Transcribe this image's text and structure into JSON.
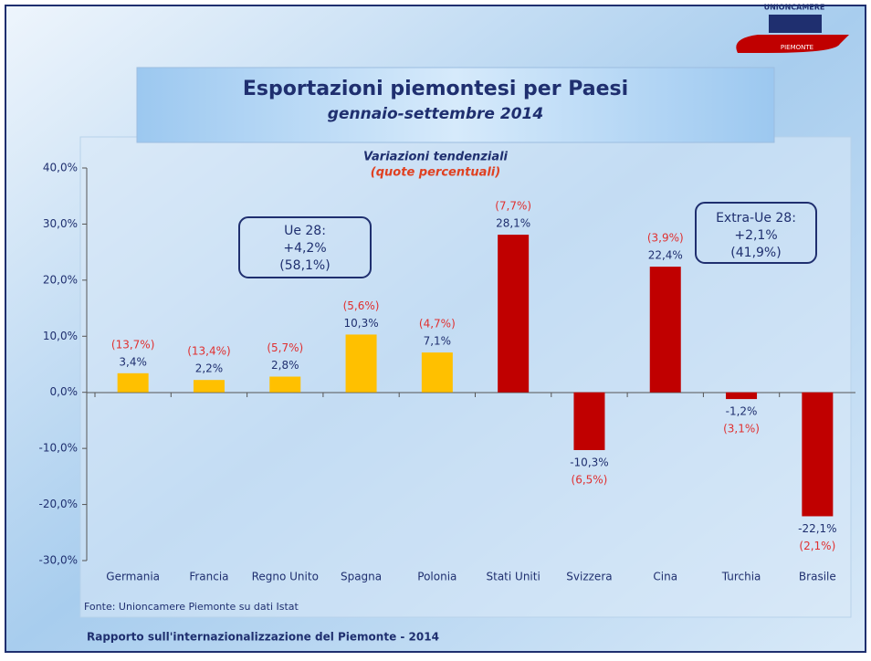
{
  "chart_data": {
    "type": "bar",
    "title": "Esportazioni piemontesi per Paesi",
    "subtitle": "gennaio-settembre 2014",
    "chart_heading": "Variazioni  tendenziali",
    "chart_subheading": "(quote percentuali)",
    "categories": [
      "Germania",
      "Francia",
      "Regno Unito",
      "Spagna",
      "Polonia",
      "Stati Uniti",
      "Svizzera",
      "Cina",
      "Turchia",
      "Brasile"
    ],
    "values": [
      3.4,
      2.2,
      2.8,
      10.3,
      7.1,
      28.1,
      -10.3,
      22.4,
      -1.2,
      -22.1
    ],
    "value_labels": [
      "3,4%",
      "2,2%",
      "2,8%",
      "10,3%",
      "7,1%",
      "28,1%",
      "-10,3%",
      "22,4%",
      "-1,2%",
      "-22,1%"
    ],
    "share_labels": [
      "(13,7%)",
      "(13,4%)",
      "(5,7%)",
      "(5,6%)",
      "(4,7%)",
      "(7,7%)",
      "(6,5%)",
      "(3,9%)",
      "(3,1%)",
      "(2,1%)"
    ],
    "colors": [
      "#FFC000",
      "#FFC000",
      "#FFC000",
      "#FFC000",
      "#FFC000",
      "#C00000",
      "#C00000",
      "#C00000",
      "#C00000",
      "#C00000"
    ],
    "ylim": [
      -30,
      40
    ],
    "yticks": [
      {
        "value": -30,
        "label": "-30,0%"
      },
      {
        "value": -20,
        "label": "-20,0%"
      },
      {
        "value": -10,
        "label": "-10,0%"
      },
      {
        "value": 0,
        "label": "0,0%"
      },
      {
        "value": 10,
        "label": "10,0%"
      },
      {
        "value": 20,
        "label": "20,0%"
      },
      {
        "value": 30,
        "label": "30,0%"
      },
      {
        "value": 40,
        "label": "40,0%"
      }
    ],
    "annotations": [
      {
        "lines": [
          "Ue 28:",
          "+4,2%",
          "(58,1%)"
        ]
      },
      {
        "lines": [
          "Extra-Ue 28:",
          "+2,1%",
          "(41,9%)"
        ]
      }
    ],
    "source": "Fonte: Unioncamere Piemonte su dati Istat"
  },
  "footer": "Rapporto sull'internazionalizzazione del Piemonte - 2014",
  "logo": {
    "top": "UNIONCAMERE",
    "bottom": "PIEMONTE"
  }
}
